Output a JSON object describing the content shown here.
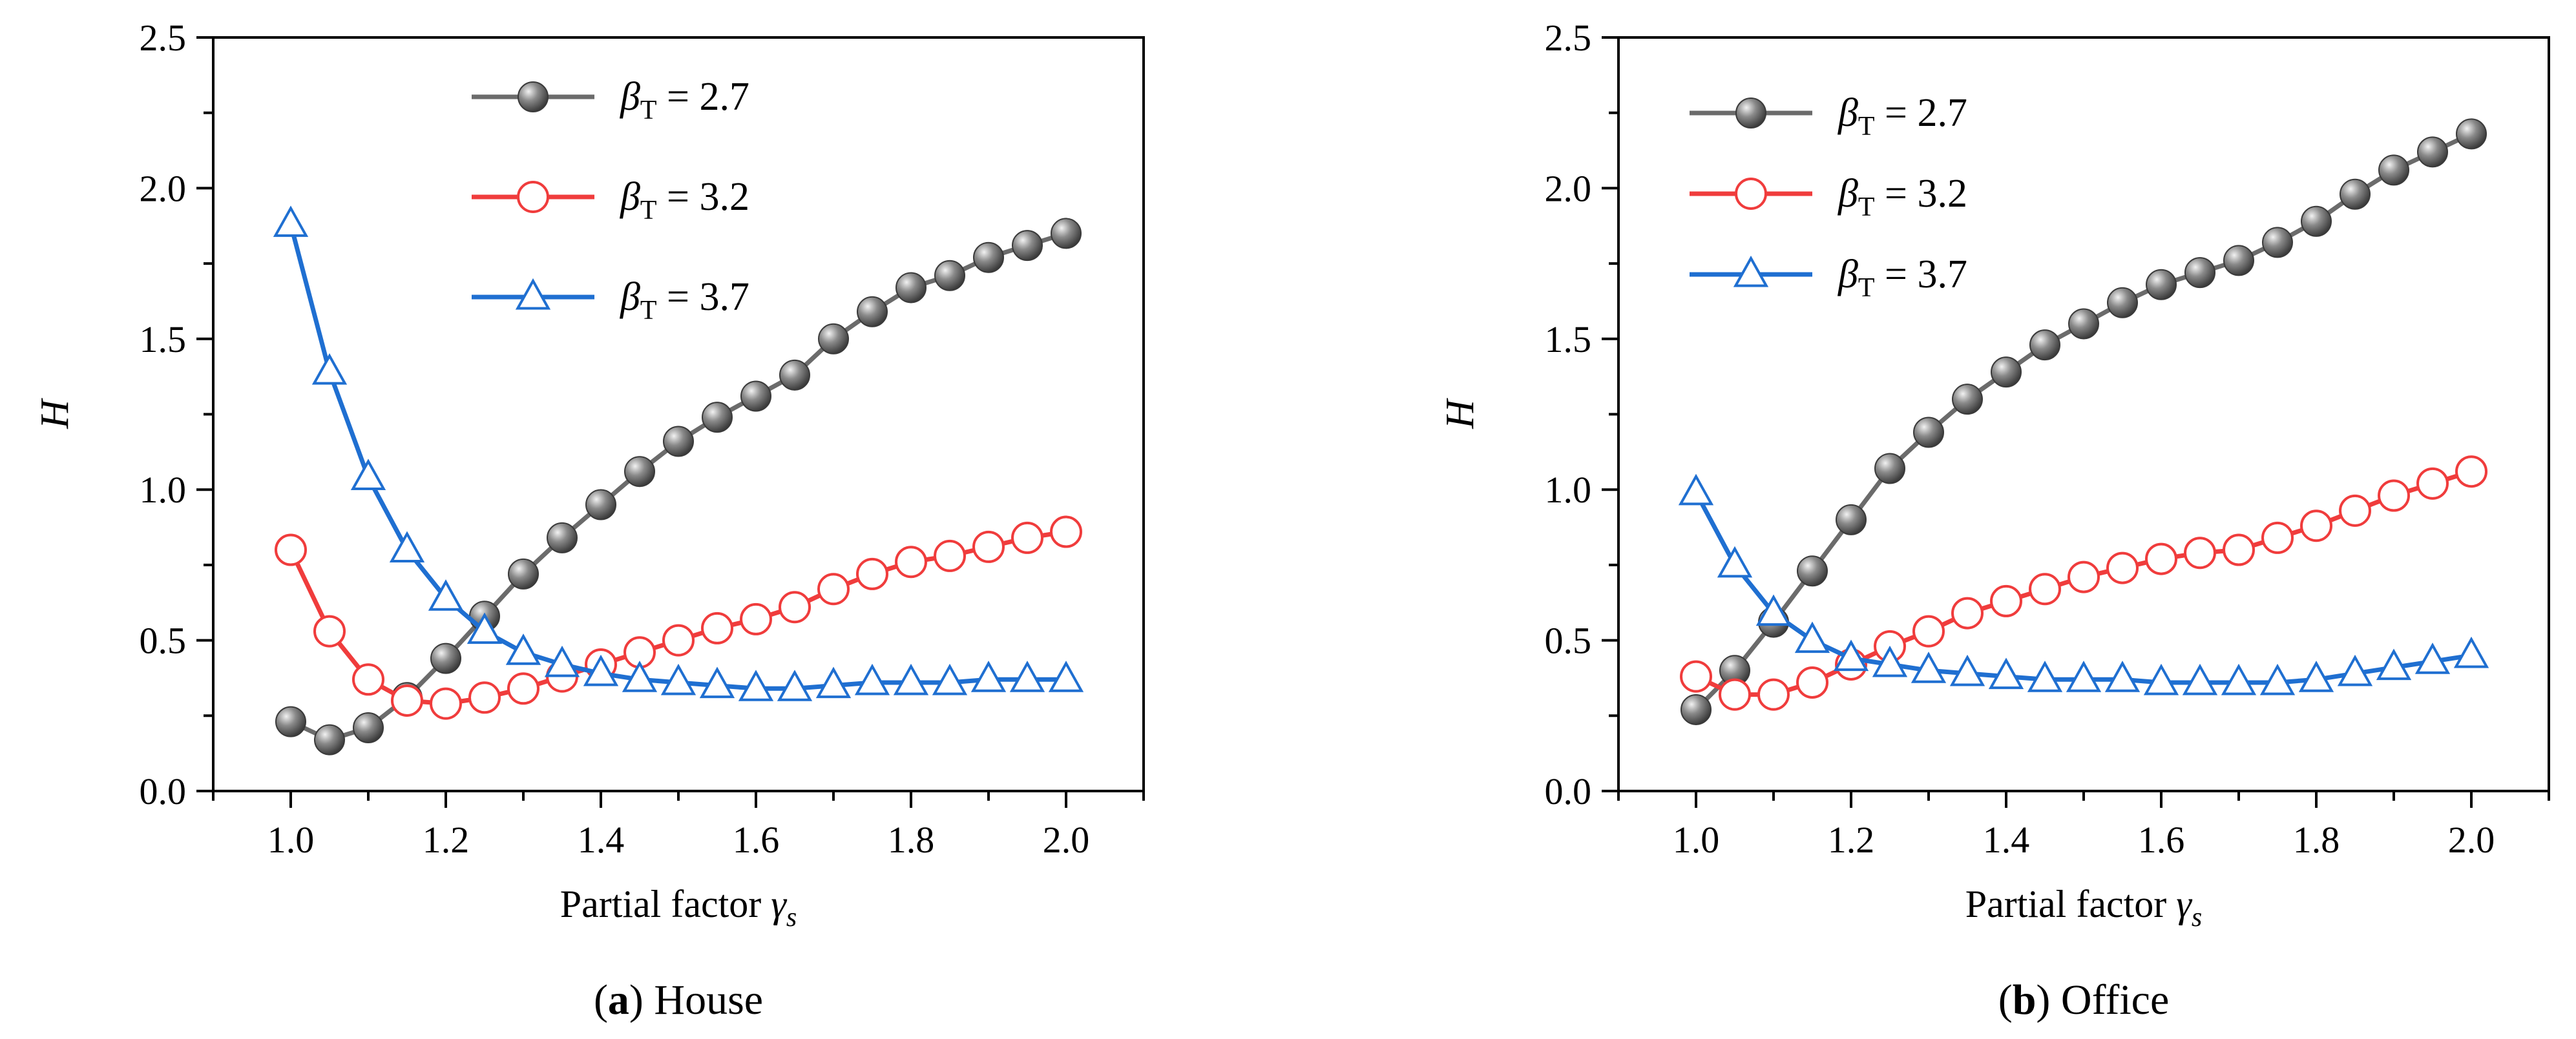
{
  "chart_data": [
    {
      "type": "line",
      "panel_label": "(a)",
      "caption": "House",
      "xlabel": "Partial factor",
      "xlabel_symbol": "γ",
      "xlabel_sub": "s",
      "ylabel": "H",
      "xlim": [
        0.9,
        2.1
      ],
      "ylim": [
        0.0,
        2.5
      ],
      "xticks": [
        1.0,
        1.2,
        1.4,
        1.6,
        1.8,
        2.0
      ],
      "xtick_labels": [
        "1.0",
        "1.2",
        "1.4",
        "1.6",
        "1.8",
        "2.0"
      ],
      "yticks": [
        0.0,
        0.5,
        1.0,
        1.5,
        2.0,
        2.5
      ],
      "ytick_labels": [
        "0.0",
        "0.5",
        "1.0",
        "1.5",
        "2.0",
        "2.5"
      ],
      "grid": false,
      "legend_position": "top-center",
      "x": [
        1.0,
        1.05,
        1.1,
        1.15,
        1.2,
        1.25,
        1.3,
        1.35,
        1.4,
        1.45,
        1.5,
        1.55,
        1.6,
        1.65,
        1.7,
        1.75,
        1.8,
        1.85,
        1.9,
        1.95,
        2.0
      ],
      "series": [
        {
          "name": "βT = 2.7",
          "legend_symbol": "β",
          "legend_sub": "T",
          "legend_value": " = 2.7",
          "marker": "sphere",
          "color": "#6b6b6b",
          "values": [
            0.23,
            0.17,
            0.21,
            0.31,
            0.44,
            0.58,
            0.72,
            0.84,
            0.95,
            1.06,
            1.16,
            1.24,
            1.31,
            1.38,
            1.5,
            1.59,
            1.67,
            1.71,
            1.77,
            1.81,
            1.85
          ]
        },
        {
          "name": "βT = 3.2",
          "legend_symbol": "β",
          "legend_sub": "T",
          "legend_value": " = 3.2",
          "marker": "circle-open",
          "color": "#f03c3c",
          "values": [
            0.8,
            0.53,
            0.37,
            0.3,
            0.29,
            0.31,
            0.34,
            0.38,
            0.42,
            0.46,
            0.5,
            0.54,
            0.57,
            0.61,
            0.67,
            0.72,
            0.76,
            0.78,
            0.81,
            0.84,
            0.86
          ]
        },
        {
          "name": "βT = 3.7",
          "legend_symbol": "β",
          "legend_sub": "T",
          "legend_value": " = 3.7",
          "marker": "triangle-open",
          "color": "#1f6fd1",
          "values": [
            1.88,
            1.39,
            1.04,
            0.8,
            0.64,
            0.53,
            0.46,
            0.42,
            0.39,
            0.37,
            0.36,
            0.35,
            0.34,
            0.34,
            0.35,
            0.36,
            0.36,
            0.36,
            0.37,
            0.37,
            0.37
          ]
        }
      ]
    },
    {
      "type": "line",
      "panel_label": "(b)",
      "caption": "Office",
      "xlabel": "Partial factor",
      "xlabel_symbol": "γ",
      "xlabel_sub": "s",
      "ylabel": "H",
      "xlim": [
        0.9,
        2.1
      ],
      "ylim": [
        0.0,
        2.5
      ],
      "xticks": [
        1.0,
        1.2,
        1.4,
        1.6,
        1.8,
        2.0
      ],
      "xtick_labels": [
        "1.0",
        "1.2",
        "1.4",
        "1.6",
        "1.8",
        "2.0"
      ],
      "yticks": [
        0.0,
        0.5,
        1.0,
        1.5,
        2.0,
        2.5
      ],
      "ytick_labels": [
        "0.0",
        "0.5",
        "1.0",
        "1.5",
        "2.0",
        "2.5"
      ],
      "grid": false,
      "legend_position": "top-left",
      "x": [
        1.0,
        1.05,
        1.1,
        1.15,
        1.2,
        1.25,
        1.3,
        1.35,
        1.4,
        1.45,
        1.5,
        1.55,
        1.6,
        1.65,
        1.7,
        1.75,
        1.8,
        1.85,
        1.9,
        1.95,
        2.0
      ],
      "series": [
        {
          "name": "βT = 2.7",
          "legend_symbol": "β",
          "legend_sub": "T",
          "legend_value": " = 2.7",
          "marker": "sphere",
          "color": "#6b6b6b",
          "values": [
            0.27,
            0.4,
            0.56,
            0.73,
            0.9,
            1.07,
            1.19,
            1.3,
            1.39,
            1.48,
            1.55,
            1.62,
            1.68,
            1.72,
            1.76,
            1.82,
            1.89,
            1.98,
            2.06,
            2.12,
            2.18
          ]
        },
        {
          "name": "βT = 3.2",
          "legend_symbol": "β",
          "legend_sub": "T",
          "legend_value": " = 3.2",
          "marker": "circle-open",
          "color": "#f03c3c",
          "values": [
            0.38,
            0.32,
            0.32,
            0.36,
            0.42,
            0.48,
            0.53,
            0.59,
            0.63,
            0.67,
            0.71,
            0.74,
            0.77,
            0.79,
            0.8,
            0.84,
            0.88,
            0.93,
            0.98,
            1.02,
            1.06
          ]
        },
        {
          "name": "βT = 3.7",
          "legend_symbol": "β",
          "legend_sub": "T",
          "legend_value": " = 3.7",
          "marker": "triangle-open",
          "color": "#1f6fd1",
          "values": [
            0.99,
            0.75,
            0.59,
            0.5,
            0.44,
            0.42,
            0.4,
            0.39,
            0.38,
            0.37,
            0.37,
            0.37,
            0.36,
            0.36,
            0.36,
            0.36,
            0.37,
            0.39,
            0.41,
            0.43,
            0.45
          ]
        }
      ]
    }
  ]
}
